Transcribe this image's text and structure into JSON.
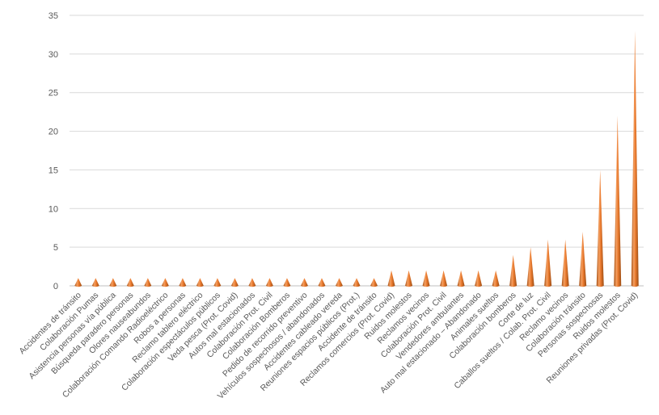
{
  "chart_data": {
    "type": "bar",
    "title": "",
    "xlabel": "",
    "ylabel": "",
    "ylim": [
      0,
      35
    ],
    "yticks": [
      0,
      5,
      10,
      15,
      20,
      25,
      30,
      35
    ],
    "grid": true,
    "legend": "none",
    "bar_color": "#ED7D31",
    "bar_shape": "cone",
    "categories": [
      "Accidentes de tránsito",
      "Colaboración Pumas",
      "Asistencia personas vía pública",
      "Búsqueda paradero personas",
      "Olores nauseabundos",
      "Colaboración Comando Radioeléctrico",
      "Robos a personas",
      "Reclamo tablero eléctrico",
      "Colaboración espectáculos públicos",
      "Veda pesca (Prot. Covid)",
      "Autos mal estacionados",
      "Colaboración Prot. Civil",
      "Colaboración Bomberos",
      "Pedido de recorrido preventivo",
      "Vehículos sospechosos / abandonados",
      "Accidentes cableado vereda",
      "Reuniones espacios públicos (Prot.)",
      "Accidente de tránsito",
      "Reclamos comercios (Prot. Covid)",
      "Ruidos molestos",
      "Reclamos vecinos",
      "Colaboración Prot. Civil",
      "Vendedores ambulantes",
      "Auto mal estacionado – Abandonado",
      "Animales sueltos",
      "Colaboración bomberos",
      "Corte de luz",
      "Caballos sueltos / Colab. Prot. Civil",
      "Reclamo vecinos",
      "Colaboración tránsito",
      "Personas sospechosas",
      "Ruidos molestos",
      "Reuniones privadas (Prot. Covid)"
    ],
    "values": [
      1,
      1,
      1,
      1,
      1,
      1,
      1,
      1,
      1,
      1,
      1,
      1,
      1,
      1,
      1,
      1,
      1,
      1,
      2,
      2,
      2,
      2,
      2,
      2,
      2,
      4,
      5,
      6,
      6,
      7,
      15,
      22,
      33
    ]
  }
}
